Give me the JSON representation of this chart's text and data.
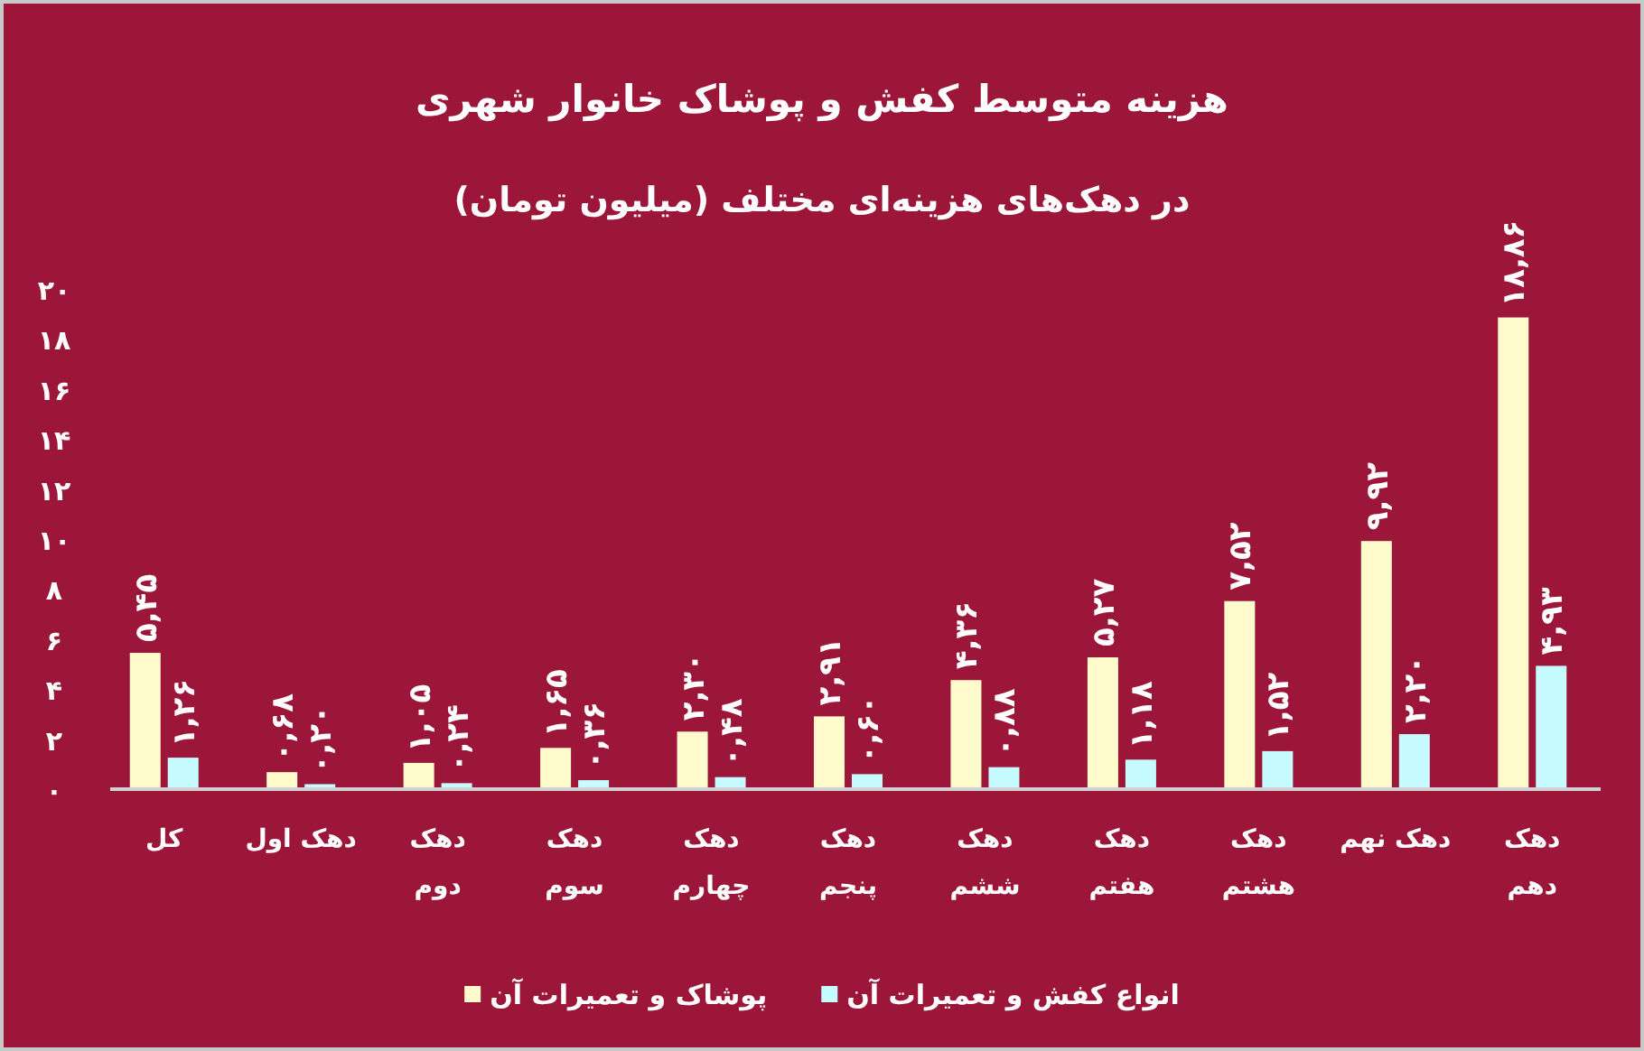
{
  "chart_data": {
    "type": "bar",
    "title": "هزینه متوسط کفش و پوشاک خانوار شهری",
    "subtitle": "در دهک‌های هزینه‌ای مختلف (میلیون تومان)",
    "categories": [
      "کل",
      "دهک اول",
      "دهک دوم",
      "دهک سوم",
      "دهک چهارم",
      "دهک پنجم",
      "دهک ششم",
      "دهک هفتم",
      "دهک هشتم",
      "دهک نهم",
      "دهک دهم"
    ],
    "series": [
      {
        "name": "پوشاک و تعمیرات آن",
        "color": "#fffbcc",
        "values": [
          5.45,
          0.68,
          1.05,
          1.65,
          2.3,
          2.91,
          4.36,
          5.27,
          7.52,
          9.92,
          18.86
        ],
        "value_labels": [
          "۵,۴۵",
          "۰,۶۸",
          "۱,۰۵",
          "۱,۶۵",
          "۲,۳۰",
          "۲,۹۱",
          "۴,۳۶",
          "۵,۲۷",
          "۷,۵۲",
          "۹,۹۲",
          "۱۸,۸۶"
        ]
      },
      {
        "name": "انواع کفش و تعمیرات آن",
        "color": "#c6fbff",
        "values": [
          1.26,
          0.2,
          0.24,
          0.36,
          0.48,
          0.6,
          0.88,
          1.18,
          1.52,
          2.2,
          4.93
        ],
        "value_labels": [
          "۱,۲۶",
          "۰,۲۰",
          "۰,۲۴",
          "۰,۳۶",
          "۰,۴۸",
          "۰,۶۰",
          "۰,۸۸",
          "۱,۱۸",
          "۱,۵۲",
          "۲,۲۰",
          "۴,۹۳"
        ]
      }
    ],
    "ylim": [
      0,
      20
    ],
    "yticks": [
      {
        "value": 0,
        "label": "۰"
      },
      {
        "value": 2,
        "label": "۲"
      },
      {
        "value": 4,
        "label": "۴"
      },
      {
        "value": 6,
        "label": "۶"
      },
      {
        "value": 8,
        "label": "۸"
      },
      {
        "value": 10,
        "label": "۱۰"
      },
      {
        "value": 12,
        "label": "۱۲"
      },
      {
        "value": 14,
        "label": "۱۴"
      },
      {
        "value": 16,
        "label": "۱۶"
      },
      {
        "value": 18,
        "label": "۱۸"
      },
      {
        "value": 20,
        "label": "۲۰"
      }
    ],
    "grid": false,
    "legend": "bottom"
  }
}
